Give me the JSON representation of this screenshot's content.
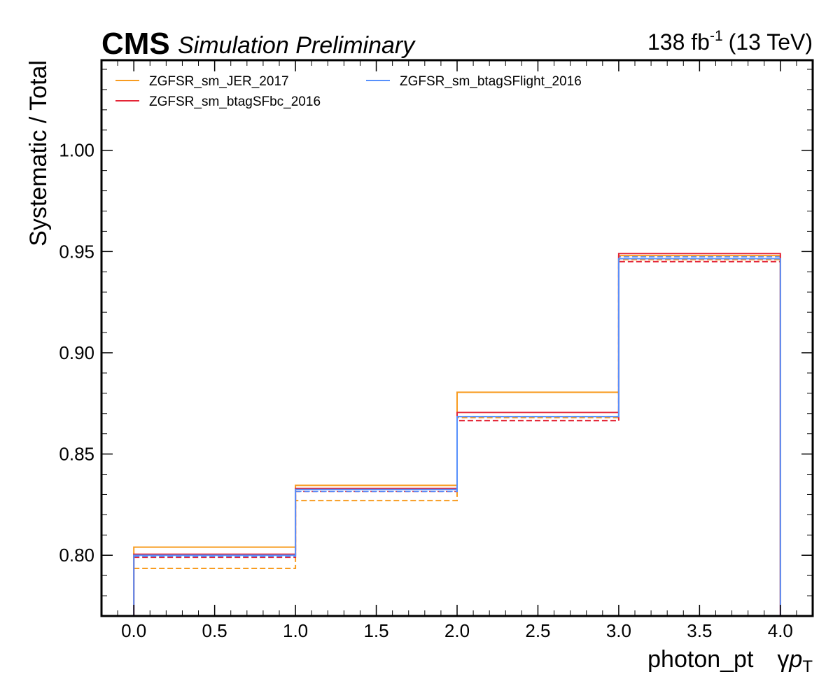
{
  "header": {
    "experiment": "CMS",
    "status": "Simulation Preliminary",
    "lumi": "138 fb",
    "lumi_exp": "-1",
    "energy": "(13 TeV)"
  },
  "chart_data": {
    "type": "step",
    "xlabel": "photon_pt",
    "xlabel_suffix_prefix": "γ",
    "xlabel_suffix_var": "p",
    "xlabel_suffix_sub": "T",
    "ylabel": "Systematic / Total",
    "xlim": [
      -0.2,
      4.2
    ],
    "ylim": [
      0.77,
      1.0445
    ],
    "x_ticks": [
      "0.0",
      "0.5",
      "1.0",
      "1.5",
      "2.0",
      "2.5",
      "3.0",
      "3.5",
      "4.0"
    ],
    "y_ticks": [
      "0.80",
      "0.85",
      "0.90",
      "0.95",
      "1.00"
    ],
    "bin_edges": [
      0,
      1,
      2,
      3,
      4
    ],
    "series": [
      {
        "name": "ZGFSR_sm_JER_2017",
        "color": "#f89c20",
        "up": [
          0.804,
          0.8345,
          0.8805,
          0.948
        ],
        "down": [
          0.7935,
          0.827,
          0.868,
          0.946
        ]
      },
      {
        "name": "ZGFSR_sm_btagSFbc_2016",
        "color": "#e42536",
        "up": [
          0.8005,
          0.833,
          0.8705,
          0.949
        ],
        "down": [
          0.799,
          0.8315,
          0.8665,
          0.945
        ]
      },
      {
        "name": "ZGFSR_sm_btagSFlight_2016",
        "color": "#5790fc",
        "up": [
          0.8,
          0.8325,
          0.8685,
          0.9465
        ],
        "down": [
          0.7995,
          0.8315,
          0.8685,
          0.9475
        ]
      }
    ],
    "legend_loc": "upper left",
    "legend_columns": 2
  }
}
